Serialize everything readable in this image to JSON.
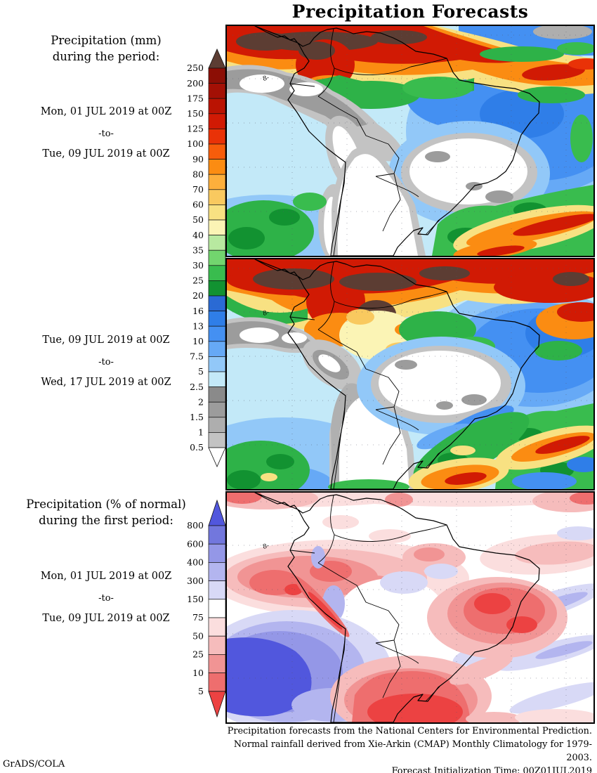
{
  "title": "Precipitation Forecasts",
  "left_labels": {
    "block1_title_line1": "Precipitation (mm)",
    "block1_title_line2": "during the period:",
    "period1_start": "Mon, 01 JUL 2019 at 00Z",
    "period_separator": "-to-",
    "period1_end": "Tue, 09 JUL 2019 at 00Z",
    "period2_start": "Tue, 09 JUL 2019 at 00Z",
    "period2_end": "Wed, 17 JUL 2019 at 00Z",
    "block3_title_line1": "Precipitation (% of normal)",
    "block3_title_line2": "during the first period:",
    "period3_start": "Mon, 01 JUL 2019 at 00Z",
    "period3_end": "Tue, 09 JUL 2019 at 00Z"
  },
  "colorbar_mm": {
    "labels": [
      "250",
      "200",
      "175",
      "150",
      "125",
      "100",
      "90",
      "80",
      "70",
      "60",
      "50",
      "40",
      "35",
      "30",
      "25",
      "20",
      "16",
      "13",
      "10",
      "7.5",
      "5",
      "2.5",
      "2",
      "1.5",
      "1",
      "0.5"
    ],
    "colors": {
      "above": "#5c3d33",
      "boxes": [
        "#8c0e05",
        "#a31005",
        "#ba1302",
        "#d11a04",
        "#e93207",
        "#f75d0b",
        "#fb8c12",
        "#fcaf3c",
        "#f9c95f",
        "#f8e182",
        "#fbf4b5",
        "#b8e9a0",
        "#72d56e",
        "#39bc4e",
        "#129231",
        "#2a6ad4",
        "#2f7ee8",
        "#4490f2",
        "#66a9f6",
        "#92c8f8",
        "#c3e9f8",
        "#8a8a8a",
        "#9c9c9c",
        "#aeaeae",
        "#c3c3c3"
      ],
      "below": "#ffffff"
    }
  },
  "colorbar_pct": {
    "labels": [
      "800",
      "600",
      "400",
      "300",
      "150",
      "75",
      "50",
      "25",
      "10",
      "5"
    ],
    "colors": {
      "above": "#5157dd",
      "boxes": [
        "#7277dd",
        "#9497e7",
        "#b3b5ef",
        "#d8d9f6",
        "#ffffff",
        "#fbdede",
        "#f6bcbc",
        "#f19494",
        "#ee6e6e"
      ],
      "below": "#ec4242"
    }
  },
  "maps": {
    "low_marker": "8-"
  },
  "footer": {
    "line1": "Precipitation forecasts from the National Centers for Environmental Prediction.",
    "line2": "Normal rainfall derived from Xie-Arkin (CMAP) Monthly Climatology for 1979-2003.",
    "line3": "Forecast Initialization Time: 00Z01JUL2019"
  },
  "credit": "GrADS/COLA",
  "chart_data": [
    {
      "type": "heatmap",
      "title": "Precipitation (mm), Mon 01 JUL 2019 00Z to Tue 09 JUL 2019 00Z",
      "scale_values_mm": [
        0.5,
        1,
        1.5,
        2,
        2.5,
        5,
        7.5,
        10,
        13,
        16,
        20,
        25,
        30,
        35,
        40,
        50,
        60,
        70,
        80,
        90,
        100,
        125,
        150,
        175,
        200,
        250
      ],
      "legend_position": "left"
    },
    {
      "type": "heatmap",
      "title": "Precipitation (mm), Tue 09 JUL 2019 00Z to Wed 17 JUL 2019 00Z",
      "scale_values_mm": [
        0.5,
        1,
        1.5,
        2,
        2.5,
        5,
        7.5,
        10,
        13,
        16,
        20,
        25,
        30,
        35,
        40,
        50,
        60,
        70,
        80,
        90,
        100,
        125,
        150,
        175,
        200,
        250
      ],
      "legend_position": "left"
    },
    {
      "type": "heatmap",
      "title": "Precipitation (% of normal), Mon 01 JUL 2019 00Z to Tue 09 JUL 2019 00Z",
      "scale_values_percent": [
        5,
        10,
        25,
        50,
        75,
        150,
        300,
        400,
        600,
        800
      ],
      "legend_position": "left"
    }
  ]
}
